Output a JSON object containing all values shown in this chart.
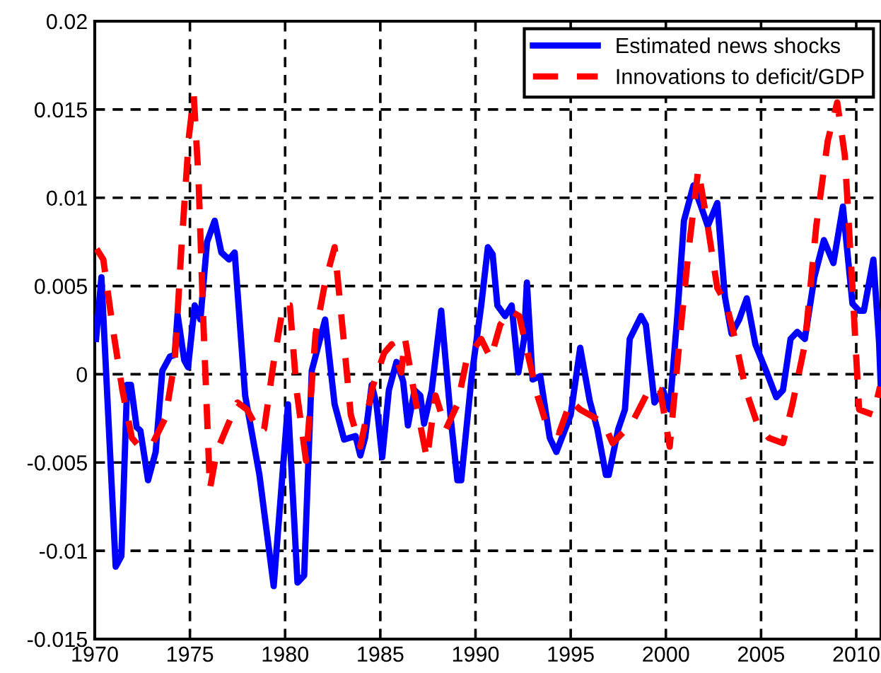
{
  "chart_data": {
    "type": "line",
    "xlim": [
      1970,
      2011.3
    ],
    "xticks": [
      1970,
      1975,
      1980,
      1985,
      1990,
      1995,
      2000,
      2005,
      2010
    ],
    "ylim": [
      -0.015,
      0.02
    ],
    "yticks": [
      -0.015,
      -0.01,
      -0.005,
      0,
      0.005,
      0.01,
      0.015,
      0.02
    ],
    "grid": true,
    "legend": "top right",
    "series": [
      {
        "name": "Estimated news shocks",
        "color": "#0000ff",
        "line_style": "solid",
        "x": [
          1970.07,
          1970.35,
          1971.1,
          1971.4,
          1971.7,
          1971.9,
          1972.2,
          1972.4,
          1972.8,
          1973.2,
          1973.55,
          1973.95,
          1974.2,
          1974.35,
          1974.7,
          1974.9,
          1975.25,
          1975.55,
          1975.9,
          1976.3,
          1976.65,
          1977.05,
          1977.35,
          1977.9,
          1978.65,
          1979.4,
          1980.15,
          1980.65,
          1981.0,
          1981.4,
          1982.1,
          1982.6,
          1983.1,
          1983.7,
          1983.95,
          1984.2,
          1984.55,
          1984.8,
          1985.1,
          1985.45,
          1985.85,
          1986.2,
          1986.45,
          1986.8,
          1987.1,
          1987.3,
          1987.7,
          1988.2,
          1988.7,
          1989.05,
          1989.25,
          1989.8,
          1990.3,
          1990.65,
          1990.9,
          1991.15,
          1991.55,
          1991.9,
          1992.25,
          1992.55,
          1992.7,
          1993.0,
          1993.4,
          1993.9,
          1994.25,
          1995.0,
          1995.5,
          1996.0,
          1996.4,
          1996.85,
          1997.0,
          1997.5,
          1997.85,
          1998.1,
          1998.7,
          1998.95,
          1999.4,
          1999.85,
          2000.2,
          2000.6,
          2000.95,
          2001.45,
          2001.85,
          2002.2,
          2002.7,
          2003.1,
          2003.45,
          2003.85,
          2004.25,
          2004.7,
          2005.3,
          2005.8,
          2006.15,
          2006.55,
          2006.9,
          2007.3,
          2007.8,
          2008.3,
          2008.8,
          2009.3,
          2009.8,
          2010.15,
          2010.4,
          2010.9,
          2011.2,
          2011.3
        ],
        "values": [
          0.002,
          0.0055,
          -0.0109,
          -0.0103,
          -0.0006,
          -0.0006,
          -0.003,
          -0.0032,
          -0.006,
          -0.0044,
          0.0002,
          0.001,
          0.0011,
          0.0034,
          0.0008,
          0.0004,
          0.0039,
          0.0031,
          0.0075,
          0.0087,
          0.0069,
          0.0065,
          0.0069,
          -0.0012,
          -0.0057,
          -0.012,
          -0.0017,
          -0.0118,
          -0.0114,
          0.0002,
          0.0031,
          -0.0017,
          -0.0037,
          -0.0035,
          -0.0046,
          -0.0036,
          -0.0006,
          -0.0017,
          -0.0047,
          -0.0009,
          0.0007,
          -0.0004,
          -0.0029,
          -0.0009,
          -0.0012,
          -0.0028,
          -0.0009,
          0.0036,
          -0.0025,
          -0.006,
          -0.006,
          -0.0001,
          0.0039,
          0.0072,
          0.0068,
          0.0039,
          0.0033,
          0.0039,
          0.0001,
          0.002,
          0.0052,
          -0.0003,
          -0.0001,
          -0.0036,
          -0.0044,
          -0.0023,
          0.0015,
          -0.0015,
          -0.0031,
          -0.0057,
          -0.0057,
          -0.0031,
          -0.002,
          0.002,
          0.0033,
          0.0028,
          -0.0016,
          -0.0009,
          -0.002,
          0.0033,
          0.0087,
          0.0107,
          0.0095,
          0.0084,
          0.0097,
          0.0044,
          0.0023,
          0.0031,
          0.0043,
          0.0017,
          0.0001,
          -0.0013,
          -0.0009,
          0.002,
          0.0024,
          0.002,
          0.0055,
          0.0076,
          0.0063,
          0.0095,
          0.004,
          0.0036,
          0.0036,
          0.0065,
          0.0018,
          -0.001
        ]
      },
      {
        "name": "Innovations to deficit/GDP",
        "color": "#ff0000",
        "line_style": "dashed",
        "x": [
          1970.1,
          1970.45,
          1970.95,
          1971.45,
          1971.95,
          1972.35,
          1973.05,
          1973.7,
          1974.2,
          1974.55,
          1974.95,
          1975.2,
          1975.45,
          1975.7,
          1976.05,
          1976.4,
          1976.9,
          1977.5,
          1978.0,
          1978.65,
          1978.9,
          1979.4,
          1979.9,
          1980.25,
          1980.6,
          1981.1,
          1981.6,
          1982.1,
          1982.6,
          1983.1,
          1983.45,
          1983.95,
          1984.6,
          1985.2,
          1985.6,
          1986.1,
          1986.3,
          1986.8,
          1987.45,
          1987.9,
          1988.45,
          1989.05,
          1989.55,
          1990.3,
          1990.8,
          1991.3,
          1991.8,
          1992.3,
          1992.8,
          1993.25,
          1993.8,
          1994.4,
          1995.0,
          1995.5,
          1996.0,
          1996.75,
          1997.2,
          1998.2,
          1999.2,
          1999.7,
          2000.2,
          2000.7,
          2001.2,
          2001.7,
          2002.2,
          2002.7,
          2003.2,
          2003.7,
          2004.2,
          2004.8,
          2005.4,
          2006.15,
          2006.65,
          2007.3,
          2007.9,
          2008.5,
          2009.0,
          2009.4,
          2009.8,
          2010.15,
          2010.9,
          2011.25
        ],
        "values": [
          0.0071,
          0.0065,
          0.0026,
          -0.0009,
          -0.0036,
          -0.0041,
          -0.0039,
          -0.0025,
          0.0007,
          0.0071,
          0.0135,
          0.0158,
          0.0111,
          0.0031,
          -0.0065,
          -0.0044,
          -0.0031,
          -0.0016,
          -0.002,
          -0.0033,
          -0.0031,
          0.0007,
          0.0039,
          0.0039,
          -0.0009,
          -0.0049,
          0.0023,
          0.0052,
          0.0072,
          0.0017,
          -0.0023,
          -0.0041,
          -0.0007,
          0.0012,
          0.0017,
          0.0001,
          0.002,
          -0.0012,
          -0.0048,
          -0.0012,
          -0.0031,
          -0.0017,
          0.0009,
          0.002,
          0.0009,
          0.0028,
          0.0036,
          0.0033,
          0.0009,
          -0.0012,
          -0.0031,
          -0.0033,
          -0.0015,
          -0.002,
          -0.0023,
          -0.0028,
          -0.0039,
          -0.0028,
          -0.0007,
          -0.0009,
          -0.0041,
          0.0017,
          0.0071,
          0.0116,
          0.0084,
          0.0049,
          0.0039,
          0.0017,
          -0.0009,
          -0.0028,
          -0.0036,
          -0.0039,
          -0.0017,
          0.0017,
          0.0084,
          0.0132,
          0.0154,
          0.0124,
          0.0049,
          -0.002,
          -0.0023,
          -0.0007
        ]
      }
    ]
  }
}
